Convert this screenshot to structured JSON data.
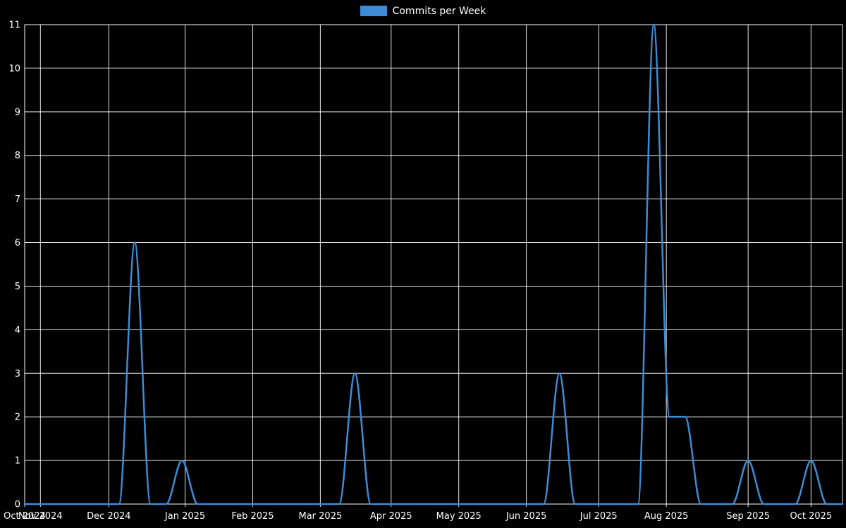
{
  "chart_data": {
    "type": "line",
    "title": "",
    "legend": [
      "Commits per Week"
    ],
    "legend_position": "top-center",
    "colors": {
      "background": "#000000",
      "line": "#3d8bd4",
      "grid": "#ffffff",
      "text": "#ffffff"
    },
    "xlabel": "",
    "ylabel": "",
    "x_unit": "weeks",
    "xlim": [
      0,
      52
    ],
    "ylim": [
      0,
      11
    ],
    "grid": true,
    "yticks": [
      0,
      1,
      2,
      3,
      4,
      5,
      6,
      7,
      8,
      9,
      10,
      11
    ],
    "xticks": [
      {
        "label": "Oct 2024",
        "w": 0.0
      },
      {
        "label": "Nov 2024",
        "w": 1.0
      },
      {
        "label": "Dec 2024",
        "w": 5.35
      },
      {
        "label": "Jan 2025",
        "w": 10.2
      },
      {
        "label": "Feb 2025",
        "w": 14.5
      },
      {
        "label": "Mar 2025",
        "w": 18.8
      },
      {
        "label": "Apr 2025",
        "w": 23.3
      },
      {
        "label": "May 2025",
        "w": 27.6
      },
      {
        "label": "Jun 2025",
        "w": 31.9
      },
      {
        "label": "Jul 2025",
        "w": 36.5
      },
      {
        "label": "Aug 2025",
        "w": 40.8
      },
      {
        "label": "Sep 2025",
        "w": 46.0
      },
      {
        "label": "Oct 2025",
        "w": 50.0
      }
    ],
    "series": [
      {
        "name": "Commits per Week",
        "x_weeks": [
          0,
          1,
          2,
          3,
          4,
          5,
          6,
          7,
          8,
          9,
          10,
          11,
          12,
          13,
          14,
          15,
          16,
          17,
          18,
          19,
          20,
          21,
          22,
          23,
          24,
          25,
          26,
          27,
          28,
          29,
          30,
          31,
          32,
          33,
          34,
          35,
          36,
          37,
          38,
          39,
          40,
          41,
          42,
          43,
          44,
          45,
          46,
          47,
          48,
          49,
          50,
          51,
          52
        ],
        "values": [
          0,
          0,
          0,
          0,
          0,
          0,
          0,
          6,
          0,
          0,
          1,
          0,
          0,
          0,
          0,
          0,
          0,
          0,
          0,
          0,
          0,
          3,
          0,
          0,
          0,
          0,
          0,
          0,
          0,
          0,
          0,
          0,
          0,
          0,
          3,
          0,
          0,
          0,
          0,
          0,
          11,
          2,
          2,
          0,
          0,
          0,
          1,
          0,
          0,
          0,
          1,
          0,
          0
        ]
      }
    ]
  }
}
